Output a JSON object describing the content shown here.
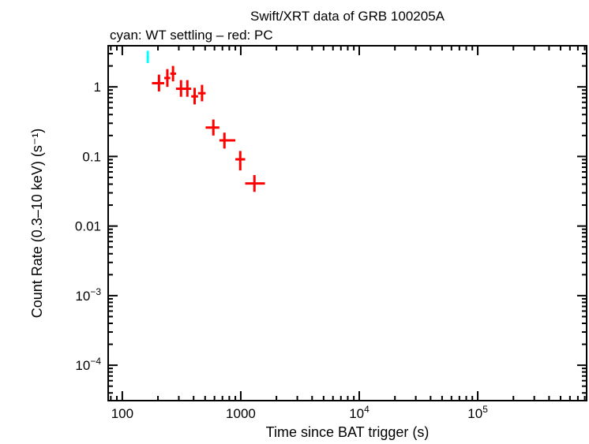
{
  "chart_data": {
    "type": "scatter",
    "title": "Swift/XRT data of GRB 100205A",
    "subtitle": "cyan: WT settling – red: PC",
    "xlabel": "Time since BAT trigger (s)",
    "ylabel": "Count Rate (0.3–10 keV) (s⁻¹)",
    "xscale": "log",
    "yscale": "log",
    "xlim": [
      76,
      830000
    ],
    "ylim": [
      3.1e-05,
      3.9
    ],
    "grid": false,
    "x_ticks": [
      {
        "value": 100,
        "label": "100"
      },
      {
        "value": 1000,
        "label": "1000"
      },
      {
        "value": 10000,
        "label": "10",
        "exp": "4"
      },
      {
        "value": 100000,
        "label": "10",
        "exp": "5"
      }
    ],
    "y_ticks": [
      {
        "value": 1,
        "label": "1"
      },
      {
        "value": 0.1,
        "label": "0.1"
      },
      {
        "value": 0.01,
        "label": "0.01"
      },
      {
        "value": 0.001,
        "label": "10",
        "exp": "−3"
      },
      {
        "value": 0.0001,
        "label": "10",
        "exp": "−4"
      }
    ],
    "series": [
      {
        "color": "#00ffff",
        "points": [
          {
            "x": 164,
            "y": 2.67,
            "xlo": 161,
            "xhi": 168,
            "ylo": 2.2,
            "yhi": 3.3
          }
        ]
      },
      {
        "color": "#ff0000",
        "points": [
          {
            "x": 204,
            "y": 1.13,
            "xlo": 178,
            "xhi": 226,
            "ylo": 0.86,
            "yhi": 1.5
          },
          {
            "x": 240,
            "y": 1.34,
            "xlo": 226,
            "xhi": 254,
            "ylo": 1.0,
            "yhi": 1.8
          },
          {
            "x": 268,
            "y": 1.55,
            "xlo": 254,
            "xhi": 284,
            "ylo": 1.2,
            "yhi": 2.0
          },
          {
            "x": 313,
            "y": 0.94,
            "xlo": 284,
            "xhi": 334,
            "ylo": 0.72,
            "yhi": 1.25
          },
          {
            "x": 354,
            "y": 0.94,
            "xlo": 334,
            "xhi": 382,
            "ylo": 0.72,
            "yhi": 1.25
          },
          {
            "x": 408,
            "y": 0.73,
            "xlo": 382,
            "xhi": 436,
            "ylo": 0.56,
            "yhi": 0.97
          },
          {
            "x": 471,
            "y": 0.81,
            "xlo": 436,
            "xhi": 505,
            "ylo": 0.62,
            "yhi": 1.07
          },
          {
            "x": 587,
            "y": 0.26,
            "xlo": 505,
            "xhi": 660,
            "ylo": 0.2,
            "yhi": 0.34
          },
          {
            "x": 728,
            "y": 0.17,
            "xlo": 660,
            "xhi": 900,
            "ylo": 0.13,
            "yhi": 0.22
          },
          {
            "x": 990,
            "y": 0.091,
            "xlo": 900,
            "xhi": 1090,
            "ylo": 0.063,
            "yhi": 0.12
          },
          {
            "x": 1304,
            "y": 0.041,
            "xlo": 1090,
            "xhi": 1600,
            "ylo": 0.031,
            "yhi": 0.054
          }
        ]
      }
    ]
  }
}
